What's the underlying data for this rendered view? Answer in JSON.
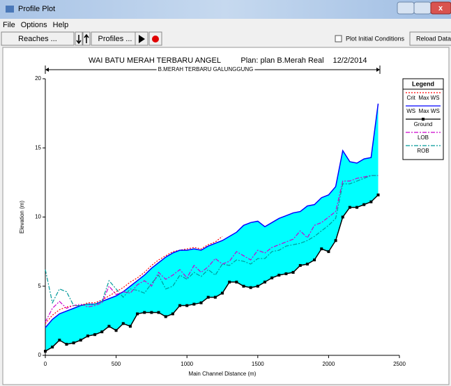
{
  "window": {
    "title": "Profile Plot"
  },
  "menu": [
    "File",
    "Options",
    "Help"
  ],
  "toolbar": {
    "reaches": "Reaches ...",
    "profiles": "Profiles ...",
    "checkbox": "Plot Initial Conditions",
    "reload": "Reload Data"
  },
  "chart_data": {
    "type": "line",
    "title": "WAI BATU MERAH TERBARU ANGEL",
    "plan": "Plan: plan B.Merah Real",
    "date": "12/2/2014",
    "reach": "B.MERAH TERBARU GALUNGGUNG",
    "x_label": "Main Channel Distance (m)",
    "y_label": "Elevation (m)",
    "legend_title": "Legend",
    "fill_color": "#00ffff",
    "xlim": [
      0,
      2500
    ],
    "ylim": [
      0,
      20
    ],
    "xticks": [
      0,
      500,
      1000,
      1500,
      2000,
      2500
    ],
    "yticks": [
      0,
      5,
      10,
      15,
      20
    ],
    "x": [
      0,
      50,
      100,
      150,
      200,
      250,
      300,
      350,
      400,
      450,
      500,
      550,
      600,
      650,
      700,
      750,
      800,
      850,
      900,
      950,
      1000,
      1050,
      1100,
      1150,
      1200,
      1250,
      1300,
      1350,
      1400,
      1450,
      1500,
      1550,
      1600,
      1650,
      1700,
      1750,
      1800,
      1850,
      1900,
      1950,
      2000,
      2050,
      2100,
      2150,
      2200,
      2250,
      2300,
      2350
    ],
    "series": [
      {
        "name": "Crit  Max WS",
        "color": "#ff0000",
        "style": "dotted",
        "values": [
          2.3,
          2.9,
          3.3,
          3.5,
          3.6,
          3.6,
          3.8,
          3.8,
          4.0,
          4.3,
          4.6,
          4.9,
          5.3,
          5.6,
          6.0,
          6.5,
          6.9,
          7.2,
          7.5,
          7.6,
          7.7,
          7.8,
          7.7,
          8.0,
          8.2,
          8.6,
          null,
          null,
          null,
          null,
          null,
          null,
          null,
          null,
          null,
          null,
          null,
          null,
          null,
          null,
          null,
          null,
          null,
          null,
          null,
          null,
          null,
          null
        ]
      },
      {
        "name": "WS  Max WS",
        "color": "#0000ff",
        "style": "solid",
        "values": [
          2.0,
          2.6,
          3.0,
          3.2,
          3.4,
          3.6,
          3.7,
          3.7,
          3.9,
          4.1,
          4.3,
          4.6,
          5.0,
          5.4,
          5.8,
          6.3,
          6.7,
          7.1,
          7.4,
          7.6,
          7.6,
          7.7,
          7.6,
          7.9,
          8.1,
          8.3,
          8.6,
          8.9,
          9.4,
          9.6,
          9.7,
          9.3,
          9.6,
          9.9,
          10.1,
          10.3,
          10.4,
          10.8,
          10.9,
          11.4,
          11.6,
          12.2,
          14.8,
          14.0,
          13.9,
          14.2,
          14.3,
          18.2
        ]
      },
      {
        "name": "Ground",
        "color": "#000000",
        "style": "solid",
        "marker": "square",
        "values": [
          0.3,
          0.6,
          1.1,
          0.8,
          0.9,
          1.1,
          1.4,
          1.5,
          1.7,
          2.1,
          1.8,
          2.3,
          2.1,
          3.0,
          3.1,
          3.1,
          3.1,
          2.8,
          3.0,
          3.6,
          3.6,
          3.7,
          3.8,
          4.2,
          4.2,
          4.5,
          5.3,
          5.3,
          5.0,
          4.9,
          5.0,
          5.3,
          5.6,
          5.8,
          5.9,
          6.0,
          6.5,
          6.6,
          6.9,
          7.7,
          7.5,
          8.3,
          10.0,
          10.7,
          10.7,
          10.9,
          11.1,
          11.6
        ]
      },
      {
        "name": "LOB",
        "color": "#cc00cc",
        "style": "dashdot",
        "values": [
          2.4,
          3.4,
          3.9,
          3.4,
          3.6,
          3.7,
          3.5,
          3.6,
          3.8,
          5.0,
          4.4,
          4.6,
          4.5,
          5.1,
          5.4,
          5.0,
          6.0,
          5.5,
          5.8,
          6.2,
          5.6,
          6.5,
          6.0,
          6.4,
          7.0,
          6.6,
          6.8,
          7.5,
          7.2,
          6.9,
          7.6,
          7.4,
          7.8,
          8.0,
          8.2,
          8.4,
          9.0,
          8.5,
          9.4,
          9.6,
          10.0,
          10.4,
          12.6,
          12.6,
          12.8,
          12.9,
          13.0,
          13.0
        ]
      },
      {
        "name": "ROB",
        "color": "#009999",
        "style": "dashdot",
        "values": [
          6.2,
          3.8,
          4.8,
          4.6,
          3.6,
          3.6,
          3.7,
          3.7,
          3.9,
          5.4,
          4.8,
          4.2,
          4.8,
          4.7,
          4.5,
          5.2,
          5.8,
          4.8,
          5.0,
          5.8,
          5.5,
          6.0,
          5.7,
          6.2,
          5.8,
          6.6,
          6.5,
          6.9,
          6.8,
          6.6,
          7.0,
          7.0,
          7.5,
          7.6,
          7.9,
          8.0,
          8.1,
          8.3,
          8.6,
          9.0,
          9.4,
          9.9,
          12.4,
          12.4,
          12.6,
          12.8,
          13.0,
          13.0
        ]
      }
    ]
  }
}
